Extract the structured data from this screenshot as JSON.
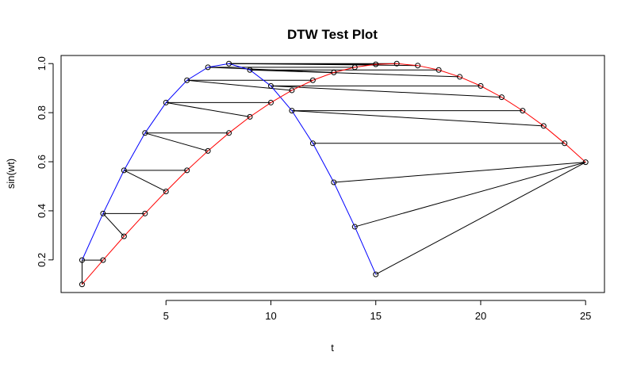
{
  "chart_data": {
    "type": "line",
    "title": "DTW Test Plot",
    "xlabel": "t",
    "ylabel": "sin(wt)",
    "xlim": [
      0.0,
      25.9
    ],
    "ylim": [
      0.067,
      1.033
    ],
    "x_ticks": [
      5,
      10,
      15,
      20,
      25
    ],
    "x_tick_labels": [
      "5",
      "10",
      "15",
      "20",
      "25"
    ],
    "y_ticks": [
      0.2,
      0.4,
      0.6,
      0.8,
      1.0
    ],
    "y_tick_labels": [
      "0.2",
      "0.4",
      "0.6",
      "0.8",
      "1.0"
    ],
    "grid": false,
    "legend": "none",
    "series": [
      {
        "color": "#0000ff",
        "x": [
          1,
          2,
          3,
          4,
          5,
          6,
          7,
          8,
          9,
          10,
          11,
          12,
          13,
          14,
          15
        ],
        "y": [
          0.199,
          0.389,
          0.565,
          0.717,
          0.841,
          0.932,
          0.985,
          1.0,
          0.974,
          0.909,
          0.808,
          0.675,
          0.516,
          0.335,
          0.141
        ]
      },
      {
        "color": "#ff0000",
        "x": [
          1,
          2,
          3,
          4,
          5,
          6,
          7,
          8,
          9,
          10,
          11,
          12,
          13,
          14,
          15,
          16,
          17,
          18,
          19,
          20,
          21,
          22,
          23,
          24,
          25
        ],
        "y": [
          0.1,
          0.199,
          0.296,
          0.389,
          0.479,
          0.565,
          0.644,
          0.717,
          0.783,
          0.841,
          0.891,
          0.932,
          0.964,
          0.985,
          0.997,
          1.0,
          0.992,
          0.974,
          0.946,
          0.909,
          0.863,
          0.808,
          0.746,
          0.675,
          0.598
        ]
      }
    ],
    "alignment": [
      [
        1,
        1
      ],
      [
        1,
        2
      ],
      [
        2,
        3
      ],
      [
        2,
        4
      ],
      [
        3,
        5
      ],
      [
        3,
        6
      ],
      [
        4,
        7
      ],
      [
        4,
        8
      ],
      [
        5,
        9
      ],
      [
        5,
        10
      ],
      [
        6,
        11
      ],
      [
        6,
        12
      ],
      [
        7,
        13
      ],
      [
        7,
        14
      ],
      [
        8,
        15
      ],
      [
        8,
        16
      ],
      [
        8,
        17
      ],
      [
        9,
        18
      ],
      [
        9,
        19
      ],
      [
        10,
        20
      ],
      [
        10,
        21
      ],
      [
        11,
        22
      ],
      [
        11,
        23
      ],
      [
        12,
        24
      ],
      [
        13,
        25
      ],
      [
        14,
        25
      ],
      [
        15,
        25
      ]
    ],
    "alignment_color": "#000000"
  }
}
